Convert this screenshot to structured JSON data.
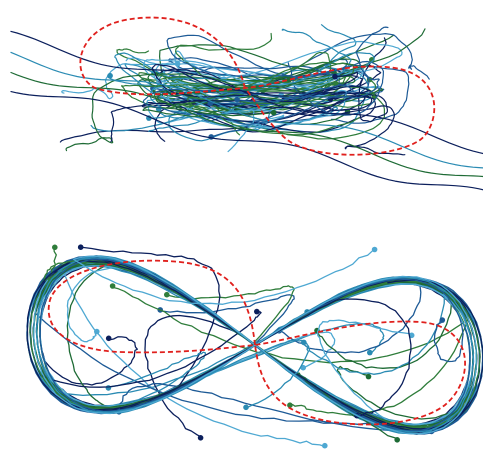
{
  "figure": {
    "panels": [
      {
        "name": "top-panel",
        "description_kind": "noisy-trajectories",
        "reference": "figure-eight"
      },
      {
        "name": "bottom-panel",
        "description_kind": "converged-trajectories",
        "reference": "figure-eight"
      }
    ],
    "colors": {
      "navy": "#0b1f5c",
      "blue": "#1d5a96",
      "teal": "#2a8bb3",
      "lightblue": "#4ea8d2",
      "darkgreen": "#1e6b35",
      "green": "#2f7d3b",
      "reference": "#e0201d"
    }
  }
}
